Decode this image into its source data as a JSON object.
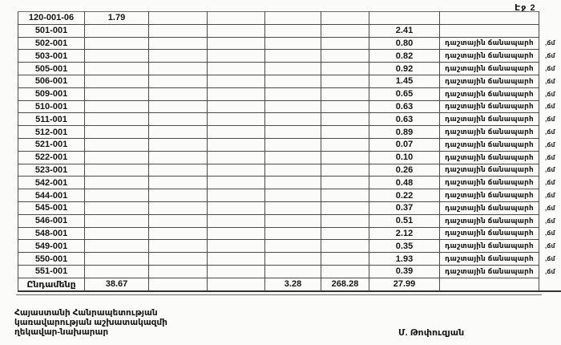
{
  "page": {
    "number_label": "Էջ 2"
  },
  "table": {
    "rows": [
      {
        "c1": "120-001-06",
        "c2": "1.79"
      },
      {
        "c1": "501-001",
        "c7": "2.41"
      },
      {
        "c1": "502-001",
        "c7": "0.80",
        "c8": "դաշտային ճանապարհ",
        "unit": ",ճմ"
      },
      {
        "c1": "503-001",
        "c7": "0.82",
        "c8": "դաշտային ճանապարհ",
        "unit": ",ճմ"
      },
      {
        "c1": "505-001",
        "c7": "0.92",
        "c8": "դաշտային ճանապարհ",
        "unit": ",ճմ"
      },
      {
        "c1": "506-001",
        "c7": "1.45",
        "c8": "դաշտային ճանապարհ",
        "unit": ",ճմ"
      },
      {
        "c1": "509-001",
        "c7": "0.65",
        "c8": "դաշտային ճանապարհ",
        "unit": ",ճմ"
      },
      {
        "c1": "510-001",
        "c7": "0.63",
        "c8": "դաշտային ճանապարհ",
        "unit": ",ճմ"
      },
      {
        "c1": "511-001",
        "c7": "0.63",
        "c8": "դաշտային ճանապարհ",
        "unit": ",ճմ"
      },
      {
        "c1": "512-001",
        "c7": "0.89",
        "c8": "դաշտային ճանապարհ",
        "unit": ",ճմ"
      },
      {
        "c1": "521-001",
        "c7": "0.07",
        "c8": "դաշտային ճանապարհ",
        "unit": ",ճմ"
      },
      {
        "c1": "522-001",
        "c7": "0.10",
        "c8": "դաշտային ճանապարհ",
        "unit": ",ճմ"
      },
      {
        "c1": "523-001",
        "c7": "0.26",
        "c8": "դաշտային ճանապարհ",
        "unit": ",ճմ"
      },
      {
        "c1": "542-001",
        "c7": "0.48",
        "c8": "դաշտային ճանապարհ",
        "unit": ",ճմ"
      },
      {
        "c1": "544-001",
        "c7": "0.22",
        "c8": "դաշտային ճանապարհ",
        "unit": ",ճմ"
      },
      {
        "c1": "545-001",
        "c7": "0.37",
        "c8": "դաշտային ճանապարհ",
        "unit": ",ճմ"
      },
      {
        "c1": "546-001",
        "c7": "0.51",
        "c8": "դաշտային ճանապարհ",
        "unit": ",ճմ"
      },
      {
        "c1": "548-001",
        "c7": "2.12",
        "c8": "դաշտային ճանապարհ",
        "unit": ",ճմ"
      },
      {
        "c1": "549-001",
        "c7": "0.35",
        "c8": "դաշտային ճանապարհ",
        "unit": ",ճմ"
      },
      {
        "c1": "550-001",
        "c7": "1.93",
        "c8": "դաշտային ճանապարհ",
        "unit": ",ճմ"
      },
      {
        "c1": "551-001",
        "c7": "0.39",
        "c8": "դաշտային ճանապարհ",
        "unit": ",ճմ"
      },
      {
        "c1": "Ընդամենը",
        "c2": "38.67",
        "c5": "3.28",
        "c6": "268.28",
        "c7": "27.99",
        "total": true
      }
    ]
  },
  "footer": {
    "org_lines": [
      "Հայաստանի Հանրապետության",
      "կառավարության աշխատակազմի",
      "ղեկավար-նախարար"
    ],
    "signature": "Մ. Թոփուզյան"
  }
}
